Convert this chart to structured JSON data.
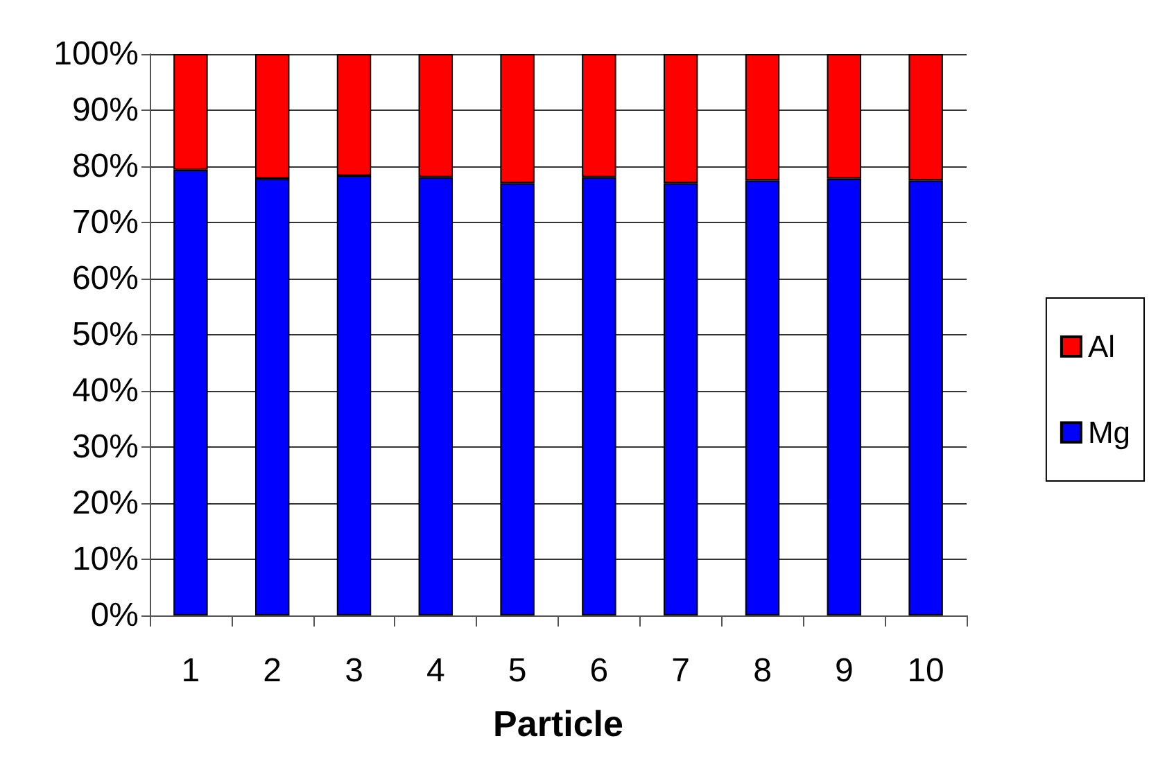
{
  "chart_data": {
    "type": "bar",
    "stacked": true,
    "xlabel": "Particle",
    "categories": [
      "1",
      "2",
      "3",
      "4",
      "5",
      "6",
      "7",
      "8",
      "9",
      "10"
    ],
    "series": [
      {
        "name": "Mg",
        "color": "#0000ff",
        "values": [
          79.4,
          77.9,
          78.4,
          78.1,
          77.0,
          78.1,
          77.0,
          77.5,
          77.8,
          77.5
        ]
      },
      {
        "name": "Al",
        "color": "#ff0000",
        "values": [
          20.6,
          22.1,
          21.6,
          21.9,
          23.0,
          21.9,
          23.0,
          22.5,
          22.2,
          22.5
        ]
      }
    ],
    "ylim": [
      0,
      100
    ],
    "yticks": [
      {
        "value": 0,
        "label": "0%"
      },
      {
        "value": 10,
        "label": "10%"
      },
      {
        "value": 20,
        "label": "20%"
      },
      {
        "value": 30,
        "label": "30%"
      },
      {
        "value": 40,
        "label": "40%"
      },
      {
        "value": 50,
        "label": "50%"
      },
      {
        "value": 60,
        "label": "60%"
      },
      {
        "value": 70,
        "label": "70%"
      },
      {
        "value": 80,
        "label": "80%"
      },
      {
        "value": 90,
        "label": "90%"
      },
      {
        "value": 100,
        "label": "100%"
      }
    ],
    "grid": "y",
    "legend": "right"
  }
}
